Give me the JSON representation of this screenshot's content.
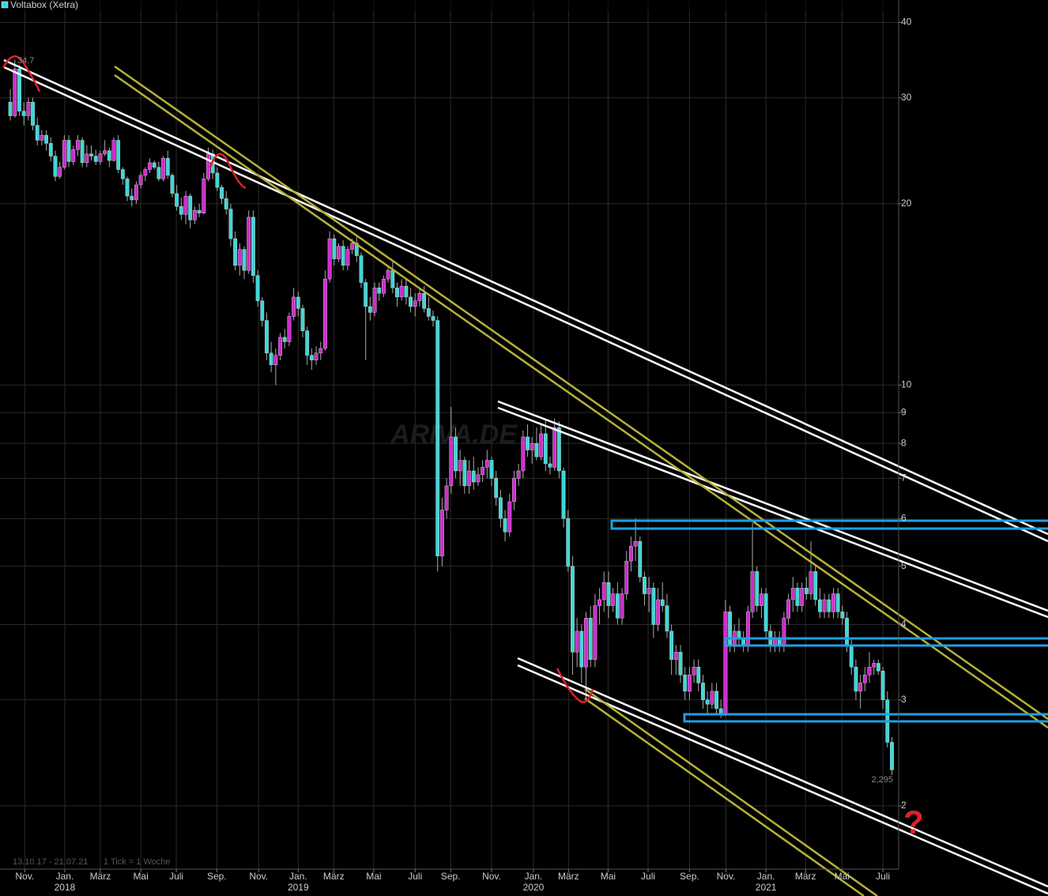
{
  "chart_data": {
    "type": "candlestick",
    "title": "Voltabox (Xetra)",
    "date_range": "13.10.17 - 21.07.21",
    "tick_note": "1 Tick = 1 Woche",
    "watermark": "ARIVA.DE",
    "max_label": "34,7",
    "last_label": "2,295",
    "question": "?",
    "log": true,
    "grid": true,
    "up_color": "#d02ad0",
    "down_color": "#3fd6d6",
    "ylim": [
      1.57,
      43.6
    ],
    "yticks": [
      40,
      30,
      20,
      10,
      9,
      8,
      7,
      6,
      5,
      4,
      3,
      2
    ],
    "xlim": [
      -2.3,
      197.5
    ],
    "xticks": [
      {
        "value": 3.2,
        "label": "Nov."
      },
      {
        "value": 12.1,
        "label": "Jan.",
        "year": "2018"
      },
      {
        "value": 20.0,
        "label": "März"
      },
      {
        "value": 29.0,
        "label": "Mai"
      },
      {
        "value": 36.9,
        "label": "Juli"
      },
      {
        "value": 45.9,
        "label": "Sep."
      },
      {
        "value": 55.2,
        "label": "Nov."
      },
      {
        "value": 64.0,
        "label": "Jan.",
        "year": "2019"
      },
      {
        "value": 71.9,
        "label": "März"
      },
      {
        "value": 80.8,
        "label": "Mai"
      },
      {
        "value": 90.0,
        "label": "Juli"
      },
      {
        "value": 97.9,
        "label": "Sep."
      },
      {
        "value": 107.0,
        "label": "Nov."
      },
      {
        "value": 116.3,
        "label": "Jan.",
        "year": "2020"
      },
      {
        "value": 124.1,
        "label": "März"
      },
      {
        "value": 132.9,
        "label": "Mai"
      },
      {
        "value": 141.8,
        "label": "Juli"
      },
      {
        "value": 151.0,
        "label": "Sep."
      },
      {
        "value": 159.1,
        "label": "Nov."
      },
      {
        "value": 168.0,
        "label": "Jan.",
        "year": "2021"
      },
      {
        "value": 176.8,
        "label": "März"
      },
      {
        "value": 184.9,
        "label": "Mai"
      },
      {
        "value": 194.0,
        "label": "Juli"
      }
    ],
    "ohlc": [
      [
        29.5,
        31,
        27.5,
        28
      ],
      [
        28,
        34.7,
        27.8,
        33.5
      ],
      [
        33.5,
        34,
        28,
        28.5
      ],
      [
        28.5,
        29.5,
        27,
        28
      ],
      [
        28,
        30,
        27.5,
        29.5
      ],
      [
        29.5,
        30,
        26.5,
        27
      ],
      [
        27,
        27.8,
        25,
        25.5
      ],
      [
        25.5,
        26.5,
        25,
        26
      ],
      [
        26,
        26.5,
        24.5,
        25.2
      ],
      [
        25.2,
        25.8,
        23.5,
        24
      ],
      [
        24,
        24.5,
        21.8,
        22.2
      ],
      [
        22.2,
        23.5,
        22,
        23
      ],
      [
        23,
        26,
        22.8,
        25.5
      ],
      [
        25.5,
        26,
        23,
        23.5
      ],
      [
        23.5,
        25,
        23.2,
        24.6
      ],
      [
        24.6,
        26,
        24,
        25.5
      ],
      [
        25.5,
        25.8,
        23,
        23.4
      ],
      [
        23.4,
        25,
        23,
        24.2
      ],
      [
        24.2,
        25,
        23.6,
        24
      ],
      [
        24,
        24.6,
        23.2,
        23.5
      ],
      [
        23.5,
        24.5,
        23.2,
        24.2
      ],
      [
        24.2,
        25.5,
        24,
        24.5
      ],
      [
        24.5,
        24.8,
        23,
        23.6
      ],
      [
        23.6,
        25.8,
        23.5,
        25.5
      ],
      [
        25.5,
        26,
        22.5,
        22.8
      ],
      [
        22.8,
        23,
        21.5,
        22
      ],
      [
        22,
        22.2,
        20.2,
        20.6
      ],
      [
        20.6,
        21.2,
        19.8,
        20.3
      ],
      [
        20.3,
        21.8,
        20,
        21.5
      ],
      [
        21.5,
        22.6,
        21.2,
        22.3
      ],
      [
        22.3,
        23,
        21.8,
        22.8
      ],
      [
        22.8,
        23.8,
        22.5,
        23.4
      ],
      [
        23.4,
        23.6,
        22.8,
        23
      ],
      [
        23,
        23.5,
        21.8,
        22
      ],
      [
        22,
        24,
        21.8,
        23.8
      ],
      [
        23.8,
        24.5,
        22,
        22.3
      ],
      [
        22.3,
        22.5,
        20.5,
        20.8
      ],
      [
        20.8,
        21.5,
        19.5,
        19.8
      ],
      [
        19.8,
        20.5,
        18.8,
        19.2
      ],
      [
        19.2,
        21,
        18.5,
        20.6
      ],
      [
        20.6,
        20.8,
        18.2,
        18.8
      ],
      [
        18.8,
        19.8,
        18.5,
        19.5
      ],
      [
        19.5,
        20,
        19,
        19.3
      ],
      [
        19.3,
        22.5,
        19.2,
        22
      ],
      [
        22,
        24.8,
        21.8,
        24.2
      ],
      [
        24.2,
        24.6,
        22,
        22.5
      ],
      [
        22.5,
        23,
        21,
        21.3
      ],
      [
        21.3,
        21.5,
        20,
        20.4
      ],
      [
        20.4,
        21,
        19.2,
        19.6
      ],
      [
        19.6,
        20,
        17,
        17.5
      ],
      [
        17.5,
        18,
        15.5,
        15.8
      ],
      [
        15.8,
        17.2,
        15.2,
        16.8
      ],
      [
        16.8,
        17,
        15,
        15.5
      ],
      [
        15.5,
        19.5,
        15.3,
        19
      ],
      [
        19,
        19.5,
        14.8,
        15.2
      ],
      [
        15.2,
        15.5,
        13.5,
        13.8
      ],
      [
        13.8,
        14,
        12.5,
        12.8
      ],
      [
        12.8,
        13.2,
        11,
        11.3
      ],
      [
        11.3,
        11.8,
        10.5,
        10.8
      ],
      [
        10.8,
        11.5,
        10,
        11.2
      ],
      [
        11.2,
        12.2,
        11,
        12
      ],
      [
        12,
        12.4,
        11.5,
        11.8
      ],
      [
        11.8,
        13.2,
        11.6,
        13
      ],
      [
        13,
        14.5,
        12.8,
        14
      ],
      [
        14,
        14.3,
        13,
        13.4
      ],
      [
        13.4,
        13.6,
        12,
        12.3
      ],
      [
        12.3,
        12.5,
        10.8,
        11.2
      ],
      [
        11.2,
        11.5,
        10.6,
        11
      ],
      [
        11,
        11.6,
        10.8,
        11.3
      ],
      [
        11.3,
        11.8,
        11,
        11.5
      ],
      [
        11.5,
        15.5,
        11.4,
        15
      ],
      [
        15,
        18,
        14.8,
        17.5
      ],
      [
        17.5,
        17.8,
        15.8,
        16.2
      ],
      [
        16.2,
        17.2,
        16,
        17
      ],
      [
        17,
        17.4,
        15.5,
        15.8
      ],
      [
        15.8,
        17,
        15.5,
        16.8
      ],
      [
        16.8,
        17.5,
        16.5,
        17.2
      ],
      [
        17.2,
        17.6,
        16,
        16.4
      ],
      [
        16.4,
        16.6,
        14.5,
        14.8
      ],
      [
        14.8,
        15,
        11,
        13.5
      ],
      [
        13.5,
        14,
        12.8,
        13.2
      ],
      [
        13.2,
        14.8,
        13,
        14.5
      ],
      [
        14.5,
        14.8,
        13.8,
        14.2
      ],
      [
        14.2,
        15.2,
        14,
        15
      ],
      [
        15,
        15.8,
        14.8,
        15.5
      ],
      [
        15.5,
        16,
        14.2,
        14.5
      ],
      [
        14.5,
        14.8,
        13.5,
        14
      ],
      [
        14,
        15,
        13.8,
        14.6
      ],
      [
        14.6,
        15,
        13.6,
        14
      ],
      [
        14,
        14.5,
        13.2,
        13.5
      ],
      [
        13.5,
        14.2,
        13,
        13.8
      ],
      [
        13.8,
        14.5,
        13.5,
        14.2
      ],
      [
        14.2,
        14.6,
        13.2,
        13.4
      ],
      [
        13.4,
        14,
        12.8,
        13
      ],
      [
        13,
        13.3,
        12.5,
        12.8
      ],
      [
        12.8,
        13,
        4.9,
        5.2
      ],
      [
        5.2,
        6.5,
        5,
        6.2
      ],
      [
        6.2,
        7,
        6,
        6.8
      ],
      [
        6.8,
        9.2,
        6.6,
        8.2
      ],
      [
        8.2,
        8.5,
        7,
        7.2
      ],
      [
        7.2,
        7.8,
        6.8,
        7.5
      ],
      [
        7.5,
        7.6,
        6.6,
        6.8
      ],
      [
        6.8,
        7.5,
        6.6,
        7.2
      ],
      [
        7.2,
        7.6,
        6.7,
        6.9
      ],
      [
        6.9,
        7.3,
        6.8,
        7.1
      ],
      [
        7.1,
        7.5,
        6.9,
        7.3
      ],
      [
        7.3,
        7.8,
        7,
        7.5
      ],
      [
        7.5,
        7.6,
        6.8,
        7
      ],
      [
        7,
        7.2,
        6.3,
        6.5
      ],
      [
        6.5,
        6.7,
        5.8,
        6
      ],
      [
        6,
        6.2,
        5.5,
        5.7
      ],
      [
        5.7,
        6.6,
        5.6,
        6.4
      ],
      [
        6.4,
        7.2,
        6.2,
        7
      ],
      [
        7,
        7.4,
        6.8,
        7.2
      ],
      [
        7.2,
        8.4,
        7,
        8.2
      ],
      [
        8.2,
        8.6,
        7.6,
        7.8
      ],
      [
        7.8,
        8.2,
        7.4,
        8
      ],
      [
        8,
        8.5,
        7.5,
        7.6
      ],
      [
        7.6,
        8.6,
        7.5,
        8.3
      ],
      [
        8.3,
        8.8,
        7.2,
        7.4
      ],
      [
        7.4,
        7.6,
        7.1,
        7.3
      ],
      [
        7.3,
        8.8,
        7.2,
        8.5
      ],
      [
        8.5,
        8.7,
        7,
        7.2
      ],
      [
        7.2,
        7.3,
        5.8,
        6
      ],
      [
        6,
        6.2,
        4.9,
        5
      ],
      [
        5,
        5.2,
        3.3,
        3.6
      ],
      [
        3.6,
        4.1,
        3.4,
        3.9
      ],
      [
        3.9,
        4,
        3.2,
        3.4
      ],
      [
        3.4,
        4.2,
        3,
        4.1
      ],
      [
        4.1,
        4.3,
        3.4,
        3.5
      ],
      [
        3.5,
        4.5,
        3.4,
        4.3
      ],
      [
        4.3,
        4.6,
        4,
        4.4
      ],
      [
        4.4,
        4.9,
        4.2,
        4.7
      ],
      [
        4.7,
        4.9,
        4.1,
        4.3
      ],
      [
        4.3,
        4.6,
        4.2,
        4.5
      ],
      [
        4.5,
        4.7,
        4,
        4.1
      ],
      [
        4.1,
        4.6,
        4,
        4.5
      ],
      [
        4.5,
        5.3,
        4.4,
        5.1
      ],
      [
        5.1,
        5.6,
        4.9,
        5.4
      ],
      [
        5.4,
        6,
        5.1,
        5.5
      ],
      [
        5.5,
        5.6,
        4.7,
        4.8
      ],
      [
        4.8,
        4.9,
        4.3,
        4.5
      ],
      [
        4.5,
        4.8,
        4.2,
        4.6
      ],
      [
        4.6,
        4.7,
        3.8,
        4
      ],
      [
        4,
        4.6,
        3.9,
        4.4
      ],
      [
        4.4,
        4.7,
        4.2,
        4.3
      ],
      [
        4.3,
        4.5,
        3.8,
        3.9
      ],
      [
        3.9,
        4,
        3.3,
        3.5
      ],
      [
        3.5,
        3.7,
        3.3,
        3.6
      ],
      [
        3.6,
        3.7,
        3.2,
        3.3
      ],
      [
        3.3,
        3.4,
        3,
        3.1
      ],
      [
        3.1,
        3.4,
        3,
        3.3
      ],
      [
        3.3,
        3.5,
        3.2,
        3.4
      ],
      [
        3.4,
        3.5,
        3.1,
        3.2
      ],
      [
        3.2,
        3.3,
        2.9,
        3
      ],
      [
        3,
        3.1,
        2.85,
        2.95
      ],
      [
        2.95,
        3.2,
        2.9,
        3.1
      ],
      [
        3.1,
        3.2,
        2.85,
        2.9
      ],
      [
        2.9,
        3,
        2.8,
        2.85
      ],
      [
        2.85,
        4.4,
        2.82,
        4.2
      ],
      [
        4.2,
        4.3,
        3.6,
        3.7
      ],
      [
        3.7,
        4,
        3.6,
        3.9
      ],
      [
        3.9,
        4.1,
        3.7,
        3.8
      ],
      [
        3.8,
        3.9,
        3.6,
        3.7
      ],
      [
        3.7,
        4.3,
        3.6,
        4.2
      ],
      [
        4.2,
        5.9,
        4.1,
        4.9
      ],
      [
        4.9,
        5,
        4.2,
        4.3
      ],
      [
        4.3,
        4.6,
        4.1,
        4.5
      ],
      [
        4.5,
        4.6,
        3.8,
        3.9
      ],
      [
        3.9,
        4,
        3.6,
        3.7
      ],
      [
        3.7,
        3.9,
        3.6,
        3.8
      ],
      [
        3.8,
        3.9,
        3.6,
        3.7
      ],
      [
        3.7,
        4.2,
        3.6,
        4.1
      ],
      [
        4.1,
        4.5,
        4,
        4.4
      ],
      [
        4.4,
        4.8,
        4.2,
        4.6
      ],
      [
        4.6,
        4.7,
        4.2,
        4.3
      ],
      [
        4.3,
        4.7,
        4.2,
        4.6
      ],
      [
        4.6,
        4.8,
        4.4,
        4.5
      ],
      [
        4.5,
        5.5,
        4.4,
        4.9
      ],
      [
        4.9,
        5,
        4.3,
        4.4
      ],
      [
        4.4,
        4.6,
        4.1,
        4.2
      ],
      [
        4.2,
        4.5,
        4.1,
        4.4
      ],
      [
        4.4,
        4.5,
        4.1,
        4.2
      ],
      [
        4.2,
        4.6,
        4.1,
        4.5
      ],
      [
        4.5,
        4.6,
        4.1,
        4.2
      ],
      [
        4.2,
        4.3,
        4,
        4.1
      ],
      [
        4.1,
        4.2,
        3.6,
        3.7
      ],
      [
        3.7,
        3.8,
        3.3,
        3.4
      ],
      [
        3.4,
        3.5,
        3,
        3.1
      ],
      [
        3.1,
        3.3,
        2.9,
        3.2
      ],
      [
        3.2,
        3.4,
        3.1,
        3.3
      ],
      [
        3.3,
        3.6,
        3.2,
        3.4
      ],
      [
        3.4,
        3.5,
        3.3,
        3.45
      ],
      [
        3.45,
        3.5,
        3.3,
        3.35
      ],
      [
        3.35,
        3.4,
        2.9,
        3.0
      ],
      [
        3,
        3.1,
        2.5,
        2.55
      ],
      [
        2.55,
        2.6,
        2.25,
        2.295
      ]
    ]
  }
}
